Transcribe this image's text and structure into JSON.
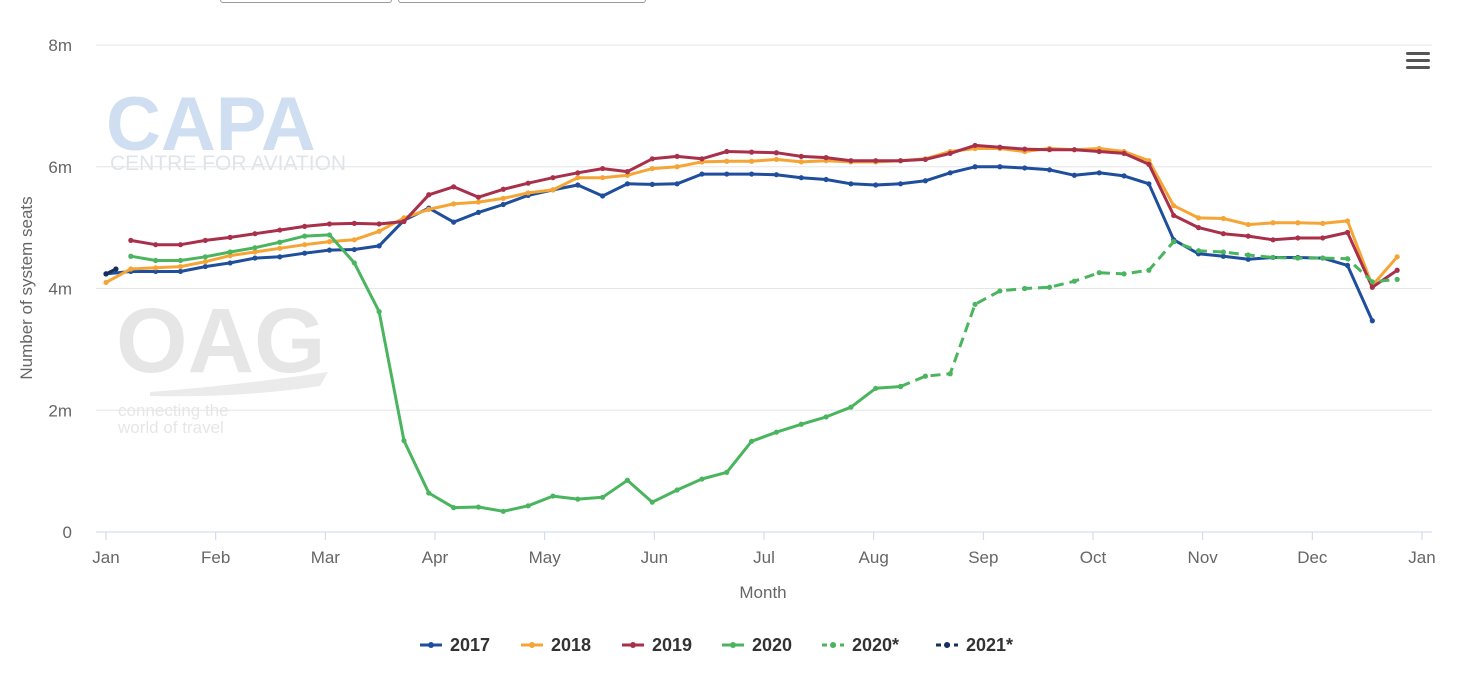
{
  "toolbar": {
    "menu_icon": "hamburger-menu-icon"
  },
  "watermarks": {
    "capa_main": "CAPA",
    "capa_sub": "CENTRE FOR AVIATION",
    "oag_main": "OAG",
    "oag_sub1": "connecting the",
    "oag_sub2": "world of travel"
  },
  "chart_data": {
    "type": "line",
    "title": "",
    "xlabel": "Month",
    "ylabel": "Number of system seats",
    "x_ticks": [
      "Jan",
      "Feb",
      "Mar",
      "Apr",
      "May",
      "Jun",
      "Jul",
      "Aug",
      "Sep",
      "Oct",
      "Nov",
      "Dec",
      "Jan"
    ],
    "y_ticks": [
      "0",
      "2m",
      "4m",
      "6m",
      "8m"
    ],
    "ylim": [
      0,
      8000000
    ],
    "x_unit": "week of year",
    "xlim": [
      0,
      53
    ],
    "grid": true,
    "legend_position": "bottom-center",
    "series": [
      {
        "name": "2017",
        "color": "#1f4e9c",
        "dashed": false,
        "x": [
          0,
          1,
          2,
          3,
          4,
          5,
          6,
          7,
          8,
          9,
          10,
          11,
          12,
          13,
          14,
          15,
          16,
          17,
          18,
          19,
          20,
          21,
          22,
          23,
          24,
          25,
          26,
          27,
          28,
          29,
          30,
          31,
          32,
          33,
          34,
          35,
          36,
          37,
          38,
          39,
          40,
          41,
          42,
          43,
          44,
          45,
          46,
          47,
          48,
          49,
          50,
          51
        ],
        "y": [
          4.24,
          4.28,
          4.28,
          4.28,
          4.36,
          4.42,
          4.5,
          4.52,
          4.58,
          4.63,
          4.64,
          4.7,
          5.12,
          5.32,
          5.09,
          5.25,
          5.38,
          5.53,
          5.62,
          5.7,
          5.52,
          5.72,
          5.71,
          5.72,
          5.88,
          5.88,
          5.88,
          5.87,
          5.82,
          5.79,
          5.72,
          5.7,
          5.72,
          5.77,
          5.9,
          6.0,
          6.0,
          5.98,
          5.95,
          5.86,
          5.9,
          5.85,
          5.72,
          4.8,
          4.57,
          4.53,
          4.48,
          4.51,
          4.51,
          4.5,
          4.38,
          3.47
        ]
      },
      {
        "name": "2018",
        "color": "#f5a535",
        "dashed": false,
        "x": [
          0,
          1,
          2,
          3,
          4,
          5,
          6,
          7,
          8,
          9,
          10,
          11,
          12,
          13,
          14,
          15,
          16,
          17,
          18,
          19,
          20,
          21,
          22,
          23,
          24,
          25,
          26,
          27,
          28,
          29,
          30,
          31,
          32,
          33,
          34,
          35,
          36,
          37,
          38,
          39,
          40,
          41,
          42,
          43,
          44,
          45,
          46,
          47,
          48,
          49,
          50,
          51,
          52,
          53
        ],
        "y": [
          4.1,
          4.32,
          4.34,
          4.36,
          4.44,
          4.54,
          4.6,
          4.66,
          4.72,
          4.77,
          4.8,
          4.94,
          5.16,
          5.3,
          5.39,
          5.42,
          5.48,
          5.57,
          5.62,
          5.82,
          5.82,
          5.86,
          5.97,
          6.0,
          6.08,
          6.09,
          6.09,
          6.12,
          6.08,
          6.1,
          6.08,
          6.08,
          6.1,
          6.13,
          6.25,
          6.3,
          6.3,
          6.25,
          6.3,
          6.28,
          6.3,
          6.25,
          6.1,
          5.36,
          5.16,
          5.15,
          5.05,
          5.08,
          5.08,
          5.07,
          5.11,
          4.05,
          4.52,
          null
        ]
      },
      {
        "name": "2019",
        "color": "#a8304a",
        "dashed": false,
        "x": [
          1,
          2,
          3,
          4,
          5,
          6,
          7,
          8,
          9,
          10,
          11,
          12,
          13,
          14,
          15,
          16,
          17,
          18,
          19,
          20,
          21,
          22,
          23,
          24,
          25,
          26,
          27,
          28,
          29,
          30,
          31,
          32,
          33,
          34,
          35,
          36,
          37,
          38,
          39,
          40,
          41,
          42,
          43,
          44,
          45,
          46,
          47,
          48,
          49,
          50,
          51,
          52
        ],
        "y": [
          4.79,
          4.72,
          4.72,
          4.79,
          4.84,
          4.9,
          4.96,
          5.02,
          5.06,
          5.07,
          5.06,
          5.1,
          5.54,
          5.67,
          5.5,
          5.63,
          5.73,
          5.82,
          5.9,
          5.97,
          5.92,
          6.13,
          6.17,
          6.13,
          6.25,
          6.24,
          6.23,
          6.17,
          6.15,
          6.1,
          6.1,
          6.1,
          6.12,
          6.22,
          6.35,
          6.32,
          6.29,
          6.28,
          6.28,
          6.25,
          6.22,
          6.04,
          5.2,
          5.0,
          4.9,
          4.86,
          4.8,
          4.83,
          4.83,
          4.92,
          4.02,
          4.3
        ]
      },
      {
        "name": "2020",
        "color": "#4ab55e",
        "dashed": false,
        "x": [
          1,
          2,
          3,
          4,
          5,
          6,
          7,
          8,
          9,
          10,
          11,
          12,
          13,
          14,
          15,
          16,
          17,
          18,
          19,
          20,
          21,
          22,
          23,
          24,
          25,
          26,
          27,
          28,
          29,
          30,
          31,
          32
        ],
        "y": [
          4.53,
          4.46,
          4.46,
          4.52,
          4.6,
          4.67,
          4.76,
          4.86,
          4.88,
          4.42,
          3.62,
          1.5,
          0.64,
          0.4,
          0.41,
          0.34,
          0.43,
          0.59,
          0.54,
          0.57,
          0.85,
          0.49,
          0.69,
          0.87,
          0.98,
          1.49,
          1.64,
          1.77,
          1.89,
          2.05,
          2.36,
          2.39
        ]
      },
      {
        "name": "2020*",
        "color": "#4ab55e",
        "dashed": true,
        "x": [
          32,
          33,
          34,
          35,
          36,
          37,
          38,
          39,
          40,
          41,
          42,
          43,
          44,
          45,
          46,
          47,
          48,
          49,
          50,
          51,
          52
        ],
        "y": [
          2.39,
          2.56,
          2.6,
          3.74,
          3.96,
          4.0,
          4.02,
          4.12,
          4.26,
          4.24,
          4.3,
          4.77,
          4.62,
          4.6,
          4.55,
          4.51,
          4.5,
          4.5,
          4.49,
          4.11,
          4.15
        ]
      },
      {
        "name": "2021*",
        "color": "#14305c",
        "dashed": true,
        "x": [
          0,
          0.4
        ],
        "y": [
          4.24,
          4.32
        ]
      }
    ]
  }
}
